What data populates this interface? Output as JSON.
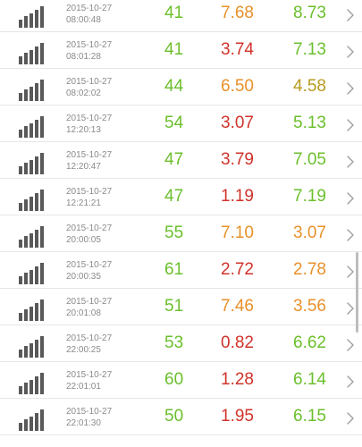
{
  "colors": {
    "green": "#6bbf2c",
    "orange": "#e8912a",
    "red": "#d0332b",
    "olive": "#b89a1e",
    "signal_bars": "#595959",
    "chevron": "#9e9e9e"
  },
  "icons": {
    "row_icon": "signal-bars-icon",
    "row_action": "chevron-right-icon"
  },
  "rows": [
    {
      "date": "2015-10-27",
      "time": "08:00:48",
      "v1": "41",
      "v1_color": "green",
      "v2": "7.68",
      "v2_color": "orange",
      "v3": "8.73",
      "v3_color": "green"
    },
    {
      "date": "2015-10-27",
      "time": "08:01:28",
      "v1": "41",
      "v1_color": "green",
      "v2": "3.74",
      "v2_color": "red",
      "v3": "7.13",
      "v3_color": "green"
    },
    {
      "date": "2015-10-27",
      "time": "08:02:02",
      "v1": "44",
      "v1_color": "green",
      "v2": "6.50",
      "v2_color": "orange",
      "v3": "4.58",
      "v3_color": "olive"
    },
    {
      "date": "2015-10-27",
      "time": "12:20:13",
      "v1": "54",
      "v1_color": "green",
      "v2": "3.07",
      "v2_color": "red",
      "v3": "5.13",
      "v3_color": "green"
    },
    {
      "date": "2015-10-27",
      "time": "12:20:47",
      "v1": "47",
      "v1_color": "green",
      "v2": "3.79",
      "v2_color": "red",
      "v3": "7.05",
      "v3_color": "green"
    },
    {
      "date": "2015-10-27",
      "time": "12:21:21",
      "v1": "47",
      "v1_color": "green",
      "v2": "1.19",
      "v2_color": "red",
      "v3": "7.19",
      "v3_color": "green"
    },
    {
      "date": "2015-10-27",
      "time": "20:00:05",
      "v1": "55",
      "v1_color": "green",
      "v2": "7.10",
      "v2_color": "orange",
      "v3": "3.07",
      "v3_color": "orange"
    },
    {
      "date": "2015-10-27",
      "time": "20:00:35",
      "v1": "61",
      "v1_color": "green",
      "v2": "2.72",
      "v2_color": "red",
      "v3": "2.78",
      "v3_color": "orange"
    },
    {
      "date": "2015-10-27",
      "time": "20:01:08",
      "v1": "51",
      "v1_color": "green",
      "v2": "7.46",
      "v2_color": "orange",
      "v3": "3.56",
      "v3_color": "orange"
    },
    {
      "date": "2015-10-27",
      "time": "22:00:25",
      "v1": "53",
      "v1_color": "green",
      "v2": "0.82",
      "v2_color": "red",
      "v3": "6.62",
      "v3_color": "green"
    },
    {
      "date": "2015-10-27",
      "time": "22:01:01",
      "v1": "60",
      "v1_color": "green",
      "v2": "1.28",
      "v2_color": "red",
      "v3": "6.14",
      "v3_color": "green"
    },
    {
      "date": "2015-10-27",
      "time": "22:01:30",
      "v1": "50",
      "v1_color": "green",
      "v2": "1.95",
      "v2_color": "red",
      "v3": "6.15",
      "v3_color": "green"
    }
  ]
}
